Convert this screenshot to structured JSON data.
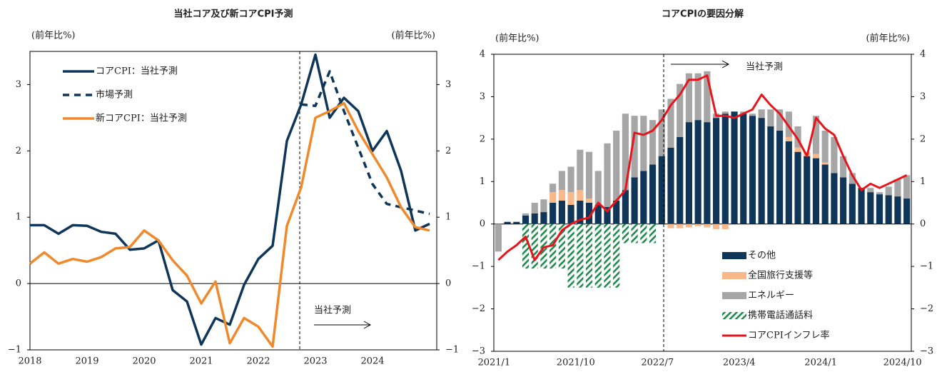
{
  "chart_data": [
    {
      "type": "line",
      "title": "当社コア及び新コアCPI予測",
      "ylabel": "(前年比%)",
      "y2label": "(前年比%)",
      "x": [
        2018,
        2018.25,
        2018.5,
        2018.75,
        2019,
        2019.25,
        2019.5,
        2019.75,
        2020,
        2020.25,
        2020.5,
        2020.75,
        2021,
        2021.25,
        2021.5,
        2021.75,
        2022,
        2022.25,
        2022.5,
        2022.75,
        2023,
        2023.25,
        2023.5,
        2023.75,
        2024,
        2024.25,
        2024.5,
        2024.75,
        2025
      ],
      "series": [
        {
          "name": "コアCPI：当社予測",
          "color": "#0f3559",
          "dashed": false,
          "values": [
            0.88,
            0.88,
            0.75,
            0.88,
            0.87,
            0.78,
            0.75,
            0.51,
            0.53,
            0.65,
            -0.1,
            -0.27,
            -0.92,
            -0.52,
            -0.62,
            -0.02,
            0.37,
            0.57,
            2.15,
            2.7,
            3.45,
            2.5,
            2.8,
            2.6,
            2.0,
            2.3,
            1.7,
            0.8,
            0.9
          ]
        },
        {
          "name": "市場予測",
          "color": "#0f3559",
          "dashed": true,
          "values": [
            null,
            null,
            null,
            null,
            null,
            null,
            null,
            null,
            null,
            null,
            null,
            null,
            null,
            null,
            null,
            null,
            null,
            null,
            null,
            2.7,
            2.68,
            3.2,
            2.6,
            2.05,
            1.5,
            1.2,
            1.15,
            1.1,
            1.05
          ]
        },
        {
          "name": "新コアCPI：当社予測",
          "color": "#f0892c",
          "dashed": false,
          "values": [
            0.3,
            0.47,
            0.3,
            0.37,
            0.33,
            0.4,
            0.53,
            0.55,
            0.8,
            0.65,
            0.35,
            0.12,
            -0.3,
            0.03,
            -0.9,
            -0.52,
            -0.65,
            -0.95,
            0.87,
            1.45,
            2.5,
            2.6,
            2.72,
            2.3,
            1.95,
            1.6,
            1.15,
            0.85,
            0.8
          ]
        }
      ],
      "xlim": [
        2018,
        2025.125
      ],
      "xticks": [
        2018,
        2019,
        2020,
        2021,
        2022,
        2023,
        2024
      ],
      "ylim": [
        -1,
        3.5
      ],
      "yticks": [
        {
          "value": -1,
          "label": "−1"
        },
        0,
        1,
        2,
        3
      ],
      "y2lim": [
        -1,
        3.5
      ],
      "y2ticks": [
        {
          "value": -1,
          "label": "−1"
        },
        0,
        1,
        2,
        3
      ],
      "annotation": "当社予測"
    },
    {
      "type": "bar",
      "title": "コアCPIの要因分解",
      "ylabel": "(前年比%)",
      "y2label": "(前年比%)",
      "categories": [
        "2021/1",
        null,
        null,
        null,
        null,
        null,
        null,
        null,
        null,
        "2021/10",
        null,
        null,
        null,
        null,
        null,
        null,
        null,
        null,
        "2022/7",
        null,
        null,
        null,
        null,
        null,
        null,
        null,
        null,
        "2023/4",
        null,
        null,
        null,
        null,
        null,
        null,
        null,
        null,
        "2024/1",
        null,
        null,
        null,
        null,
        null,
        null,
        null,
        null,
        "2024/10"
      ],
      "series": [
        {
          "name": "その他",
          "type": "bar",
          "color": "#0f3559",
          "values": [
            0,
            0.05,
            0.05,
            0.2,
            0.25,
            0.28,
            0.5,
            0.55,
            0.45,
            0.55,
            0.5,
            0.45,
            0.4,
            0.55,
            0.8,
            1.1,
            1.25,
            1.4,
            1.6,
            1.8,
            2.05,
            2.4,
            2.45,
            2.4,
            2.5,
            2.6,
            2.65,
            2.6,
            2.55,
            2.5,
            2.3,
            2.2,
            1.95,
            1.7,
            1.6,
            1.55,
            1.4,
            1.2,
            1.1,
            0.95,
            0.85,
            0.75,
            0.7,
            0.68,
            0.65,
            0.6
          ]
        },
        {
          "name": "全国旅行支援等",
          "type": "bar",
          "color": "#f9b88a",
          "values": [
            0,
            0,
            0,
            0,
            0,
            0,
            0.25,
            0.25,
            0.3,
            0.25,
            0.1,
            0,
            0,
            0,
            0,
            0,
            0,
            0,
            0,
            -0.1,
            -0.1,
            -0.08,
            -0.05,
            -0.08,
            -0.12,
            -0.12,
            0,
            0,
            0,
            0,
            0,
            0,
            0.1,
            0.1,
            0.1,
            0.1,
            0.05,
            0,
            0,
            0,
            0,
            0,
            0,
            0,
            0,
            0
          ]
        },
        {
          "name": "エネルギー",
          "type": "bar",
          "color": "#a6a6a6",
          "values": [
            -0.65,
            0,
            0,
            0.05,
            0.25,
            0.3,
            0.2,
            0.45,
            0.6,
            0.95,
            1.1,
            0.8,
            1.5,
            1.65,
            1.8,
            1.45,
            1.3,
            1.05,
            1.1,
            1.15,
            1.25,
            1.15,
            1.1,
            1.2,
            0.1,
            0.05,
            0,
            0.05,
            0.05,
            0.2,
            0.4,
            0.5,
            0.6,
            0.5,
            0,
            0.9,
            0.75,
            0.85,
            0.5,
            0.25,
            0,
            0.1,
            0.05,
            0.2,
            0.4,
            0.55
          ]
        },
        {
          "name": "携帯電話通話料",
          "type": "bar",
          "color": "#1f8a4c",
          "hatch": true,
          "values": [
            0,
            0,
            0,
            -1.05,
            -1.05,
            -1.05,
            -1.05,
            -1.05,
            -1.5,
            -1.5,
            -1.5,
            -1.5,
            -1.5,
            -1.5,
            -0.45,
            -0.45,
            -0.45,
            -0.45,
            0,
            0,
            0,
            0,
            0,
            0,
            0,
            0,
            0,
            0,
            0,
            0,
            0,
            0,
            0,
            0,
            0,
            0,
            0,
            0,
            0,
            0,
            0,
            0,
            0,
            0,
            0,
            0
          ]
        },
        {
          "name": "コアCPIインフレ率",
          "type": "line",
          "color": "#e8141b",
          "values": [
            -0.85,
            -0.65,
            -0.5,
            -0.3,
            -0.85,
            -0.55,
            -0.5,
            -0.15,
            0,
            0.1,
            0.15,
            0.5,
            0.3,
            0.55,
            0.8,
            2.15,
            2.1,
            2.2,
            2.45,
            2.8,
            3.05,
            3.4,
            3.4,
            3.5,
            2.55,
            2.55,
            2.5,
            2.6,
            2.7,
            3.05,
            2.8,
            2.6,
            2.3,
            2,
            1.6,
            2.5,
            2.25,
            2.1,
            1.6,
            1.15,
            0.8,
            0.95,
            0.85,
            0.95,
            1.05,
            1.15
          ]
        }
      ],
      "ylim": [
        -3,
        4
      ],
      "yticks": [
        {
          "value": -3,
          "label": "−3"
        },
        {
          "value": -2,
          "label": "−2"
        },
        {
          "value": -1,
          "label": "−1"
        },
        0,
        1,
        2,
        3,
        4
      ],
      "y2lim": [
        -3,
        4
      ],
      "y2ticks": [
        {
          "value": -3,
          "label": "−3"
        },
        {
          "value": -2,
          "label": "−2"
        },
        {
          "value": -1,
          "label": "−1"
        },
        0,
        1,
        2,
        3,
        4
      ],
      "annotation": "当社予測"
    }
  ]
}
